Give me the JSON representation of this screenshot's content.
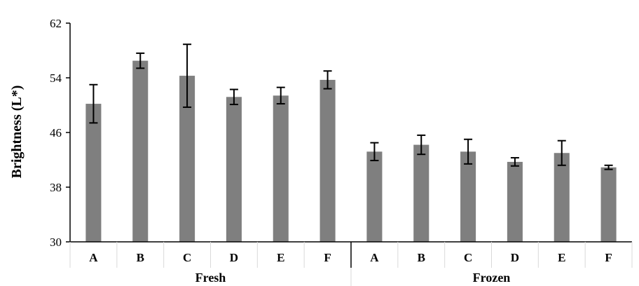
{
  "chart_data": {
    "type": "bar",
    "title": "",
    "xlabel": "",
    "ylabel": "Brightness (L*)",
    "ylim": [
      30,
      62
    ],
    "yticks": [
      30,
      38,
      46,
      54,
      62
    ],
    "grid": false,
    "colors": {
      "bar": "#7f7f7f",
      "axis": "#000000",
      "error": "#000000"
    },
    "groups": [
      {
        "name": "Fresh",
        "categories": [
          "A",
          "B",
          "C",
          "D",
          "E",
          "F"
        ],
        "values": [
          50.2,
          56.5,
          54.3,
          51.2,
          51.4,
          53.7
        ],
        "errors": [
          2.8,
          1.1,
          4.6,
          1.1,
          1.2,
          1.3
        ]
      },
      {
        "name": "Frozen",
        "categories": [
          "A",
          "B",
          "C",
          "D",
          "E",
          "F"
        ],
        "values": [
          43.2,
          44.2,
          43.2,
          41.7,
          43.0,
          40.9
        ],
        "errors": [
          1.3,
          1.4,
          1.8,
          0.6,
          1.8,
          0.3
        ]
      }
    ]
  }
}
